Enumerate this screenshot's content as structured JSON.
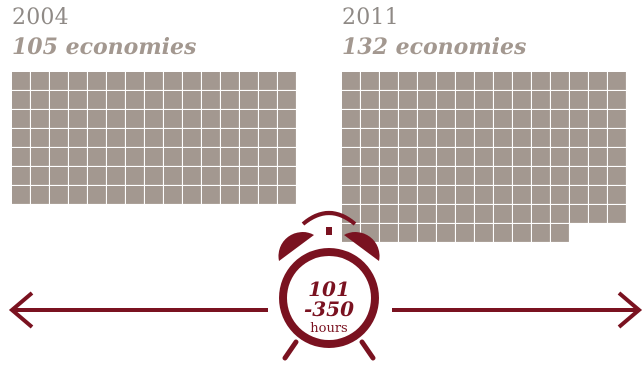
{
  "colors": {
    "square": "#a39890",
    "accent": "#7a1220",
    "year_text": "#8f8a86"
  },
  "chart_data": [
    {
      "type": "waffle",
      "title": "2004",
      "subtitle": "105 economies",
      "value": 105,
      "columns": 15
    },
    {
      "type": "waffle",
      "title": "2011",
      "subtitle": "132 economies",
      "value": 132,
      "columns": 15
    }
  ],
  "range": {
    "low": "101",
    "high": "-350",
    "unit": "hours"
  },
  "icons": [
    "alarm-clock-icon",
    "arrow-left-icon",
    "arrow-right-icon"
  ]
}
